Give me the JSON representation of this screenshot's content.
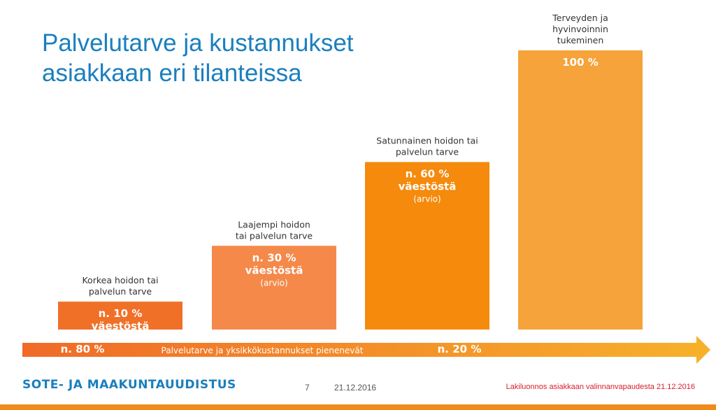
{
  "slide": {
    "title_line1": "Palvelutarve ja kustannukset",
    "title_line2": "asiakkaan eri tilanteissa"
  },
  "chart_data": {
    "type": "bar",
    "title": "Palvelutarve ja kustannukset asiakkaan eri tilanteissa",
    "categories": [
      "Korkea hoidon tai palvelun tarve",
      "Laajempi hoidon tai palvelun tarve",
      "Satunnainen hoidon tai palvelun tarve",
      "Terveyden ja hyvinvoinnin tukeminen"
    ],
    "values": [
      10,
      30,
      60,
      100
    ],
    "ylim": [
      0,
      100
    ],
    "bars": [
      {
        "category_lines": [
          "Korkea hoidon tai",
          "palvelun tarve"
        ],
        "value_label": "n. 10 %",
        "sub_label": "väestöstä",
        "note": "",
        "color": "#f07028"
      },
      {
        "category_lines": [
          "Laajempi hoidon",
          "tai palvelun tarve"
        ],
        "value_label": "n. 30 %",
        "sub_label": "väestöstä",
        "note": "(arvio)",
        "color": "#f4894a"
      },
      {
        "category_lines": [
          "Satunnainen hoidon tai",
          "palvelun tarve"
        ],
        "value_label": "n. 60 %",
        "sub_label": "väestöstä",
        "note": "(arvio)",
        "color": "#f58a0c"
      },
      {
        "category_lines": [
          "Terveyden ja",
          "hyvinvoinnin",
          "tukeminen"
        ],
        "value_label": "100 %",
        "sub_label": "",
        "note": "",
        "color": "#f5a33a"
      }
    ],
    "arrow": {
      "left_label": "n. 80 %",
      "center_label": "Palvelutarve ja yksikkökustannukset pienenevät",
      "right_label": "n. 20 %",
      "color_start": "#f06a28",
      "color_end": "#f7b12a"
    },
    "grid": false,
    "legend": "none"
  },
  "footer": {
    "brand": "SOTE- JA MAAKUNTAUUDISTUS",
    "page": "7",
    "date": "21.12.2016",
    "note": "Lakiluonnos asiakkaan valinnanvapaudesta 21.12.2016"
  }
}
